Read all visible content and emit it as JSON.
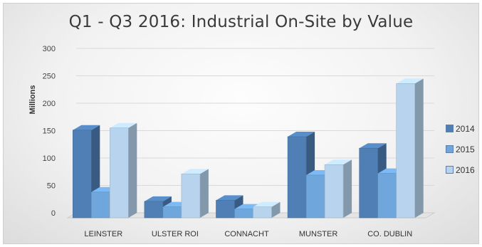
{
  "chart_data": {
    "type": "bar",
    "title": "Q1 - Q3 2016: Industrial On-Site by Value",
    "ylabel": "Millions",
    "xlabel": "",
    "ylim": [
      0,
      300
    ],
    "yticks": [
      0,
      50,
      100,
      150,
      200,
      250,
      300
    ],
    "grid": true,
    "legend_position": "right",
    "categories": [
      "LEINSTER",
      "ULSTER ROI",
      "CONNACHT",
      "MUNSTER",
      "CO. DUBLIN"
    ],
    "series": [
      {
        "name": "2014",
        "color": "#4f7fb4",
        "values": [
          160,
          30,
          32,
          148,
          127
        ]
      },
      {
        "name": "2015",
        "color": "#6fa6dc",
        "values": [
          47,
          20,
          16,
          78,
          81
        ]
      },
      {
        "name": "2016",
        "color": "#b8d3ee",
        "values": [
          164,
          80,
          20,
          97,
          245
        ]
      }
    ]
  }
}
